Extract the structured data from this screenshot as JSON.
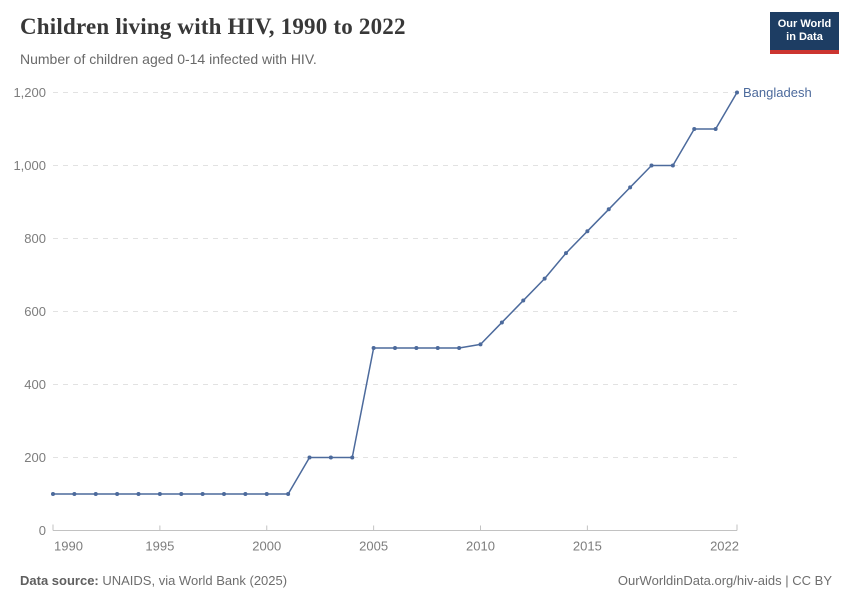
{
  "header": {
    "title": "Children living with HIV, 1990 to 2022",
    "subtitle": "Number of children aged 0-14 infected with HIV.",
    "logo": {
      "line1": "Our World",
      "line2": "in Data",
      "bg_color": "#1d3d63",
      "accent_color": "#cc3530"
    }
  },
  "chart_data": {
    "type": "line",
    "title": "Children living with HIV, 1990 to 2022",
    "subtitle": "Number of children aged 0-14 infected with HIV.",
    "xlabel": "",
    "ylabel": "",
    "xlim": [
      1990,
      2022
    ],
    "ylim": [
      0,
      1200
    ],
    "x_ticks": [
      1990,
      1995,
      2000,
      2005,
      2010,
      2015,
      2022
    ],
    "y_ticks": [
      0,
      200,
      400,
      600,
      800,
      1000,
      1200
    ],
    "grid": "horizontal-dashed",
    "legend": "end-of-line-label",
    "series": [
      {
        "name": "Bangladesh",
        "color": "#4c6a9c",
        "x": [
          1990,
          1991,
          1992,
          1993,
          1994,
          1995,
          1996,
          1997,
          1998,
          1999,
          2000,
          2001,
          2002,
          2003,
          2004,
          2005,
          2006,
          2007,
          2008,
          2009,
          2010,
          2011,
          2012,
          2013,
          2014,
          2015,
          2016,
          2017,
          2018,
          2019,
          2020,
          2021,
          2022
        ],
        "values": [
          100,
          100,
          100,
          100,
          100,
          100,
          100,
          100,
          100,
          100,
          100,
          100,
          200,
          200,
          200,
          500,
          500,
          500,
          500,
          500,
          510,
          570,
          630,
          690,
          760,
          820,
          880,
          940,
          1000,
          1000,
          1100,
          1100,
          1200
        ]
      }
    ],
    "colors": {
      "gridline": "#e2e2e2",
      "axis": "#c2c2c2",
      "tick_label": "#7d7d7d"
    }
  },
  "footer": {
    "source_label": "Data source:",
    "source_text": " UNAIDS, via World Bank (2025)",
    "link_text": "OurWorldinData.org/hiv-aids | CC BY"
  }
}
